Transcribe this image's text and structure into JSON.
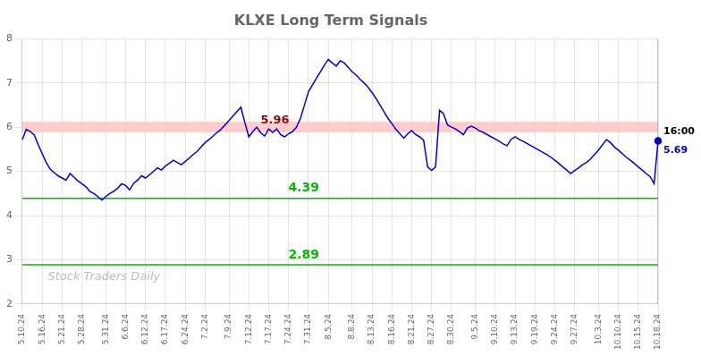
{
  "chart_data": {
    "type": "line",
    "title": "KLXE Long Term Signals",
    "categories": [
      "5.10.24",
      null,
      null,
      null,
      null,
      "5.16.24",
      null,
      null,
      null,
      null,
      "5.21.24",
      null,
      null,
      null,
      null,
      "5.28.24",
      null,
      null,
      null,
      null,
      null,
      "5.31.24",
      null,
      null,
      null,
      null,
      "6.6.24",
      null,
      null,
      null,
      null,
      "6.12.24",
      null,
      null,
      null,
      null,
      "6.17.24",
      null,
      null,
      null,
      null,
      "6.24.24",
      null,
      null,
      null,
      null,
      "7.2.24",
      null,
      null,
      null,
      null,
      null,
      "7.9.24",
      null,
      null,
      null,
      null,
      "7.12.24",
      null,
      null,
      null,
      null,
      "7.17.24",
      null,
      null,
      null,
      null,
      "7.24.24",
      null,
      null,
      null,
      null,
      "7.31.24",
      null,
      null,
      null,
      null,
      "8.5.24",
      null,
      null,
      null,
      null,
      null,
      "8.8.24",
      null,
      null,
      null,
      null,
      "8.13.24",
      null,
      null,
      null,
      null,
      "8.16.24",
      null,
      null,
      null,
      null,
      "8.21.24",
      null,
      null,
      null,
      null,
      "8.27.24",
      null,
      null,
      null,
      null,
      "8.30.24",
      null,
      null,
      null,
      null,
      null,
      "9.5.24",
      null,
      null,
      null,
      null,
      "9.10.24",
      null,
      null,
      null,
      null,
      "9.13.24",
      null,
      null,
      null,
      null,
      "9.19.24",
      null,
      null,
      null,
      null,
      "9.24.24",
      null,
      null,
      null,
      null,
      "9.27.24",
      null,
      null,
      null,
      null,
      null,
      "10.3.24",
      null,
      null,
      null,
      null,
      "10.10.24",
      null,
      null,
      null,
      null,
      "10.15.24",
      null,
      null,
      null,
      null,
      "10.18.24"
    ],
    "values": [
      5.72,
      5.95,
      5.9,
      5.82,
      5.6,
      5.4,
      5.2,
      5.05,
      4.97,
      4.9,
      4.85,
      4.8,
      4.95,
      4.87,
      4.78,
      4.72,
      4.65,
      4.55,
      4.5,
      4.43,
      4.35,
      4.43,
      4.5,
      4.55,
      4.62,
      4.72,
      4.68,
      4.58,
      4.73,
      4.8,
      4.9,
      4.85,
      4.92,
      5.0,
      5.08,
      5.03,
      5.12,
      5.18,
      5.25,
      5.2,
      5.15,
      5.22,
      5.3,
      5.38,
      5.45,
      5.55,
      5.65,
      5.72,
      5.8,
      5.88,
      5.95,
      6.05,
      6.15,
      6.25,
      6.35,
      6.45,
      6.1,
      5.78,
      5.9,
      6.0,
      5.87,
      5.8,
      5.96,
      5.88,
      5.96,
      5.83,
      5.78,
      5.85,
      5.9,
      6.0,
      6.2,
      6.5,
      6.8,
      6.95,
      7.1,
      7.25,
      7.4,
      7.53,
      7.45,
      7.38,
      7.5,
      7.45,
      7.35,
      7.25,
      7.18,
      7.08,
      7.0,
      6.9,
      6.78,
      6.65,
      6.5,
      6.35,
      6.2,
      6.08,
      5.95,
      5.85,
      5.75,
      5.85,
      5.92,
      5.83,
      5.78,
      5.7,
      5.1,
      5.02,
      5.1,
      6.38,
      6.3,
      6.05,
      6.0,
      5.96,
      5.9,
      5.83,
      5.98,
      6.02,
      5.98,
      5.92,
      5.88,
      5.83,
      5.78,
      5.73,
      5.68,
      5.62,
      5.58,
      5.72,
      5.78,
      5.72,
      5.68,
      5.63,
      5.58,
      5.53,
      5.48,
      5.43,
      5.38,
      5.32,
      5.25,
      5.18,
      5.1,
      5.03,
      4.95,
      5.02,
      5.08,
      5.15,
      5.2,
      5.28,
      5.38,
      5.48,
      5.6,
      5.72,
      5.65,
      5.55,
      5.48,
      5.4,
      5.32,
      5.25,
      5.18,
      5.1,
      5.03,
      4.95,
      4.88,
      4.72,
      5.69
    ],
    "color": "#0000cc",
    "ylim": [
      2,
      8
    ],
    "yticks": [
      2,
      3,
      4,
      5,
      6,
      7,
      8
    ],
    "grid": true,
    "resistance_band": {
      "lower": 5.88,
      "upper": 6.12,
      "color": "#ffcccc"
    },
    "support_lines": [
      {
        "value": 4.39,
        "label": "4.39",
        "color": "#00bb00"
      },
      {
        "value": 2.89,
        "label": "2.89",
        "color": "#00bb00"
      }
    ],
    "signal": {
      "value": 5.96,
      "label": "5.96",
      "color": "#990000"
    },
    "last_point": {
      "value": 5.69,
      "label": "5.69",
      "time": "16:00"
    },
    "watermark": "Stock Traders Daily"
  }
}
